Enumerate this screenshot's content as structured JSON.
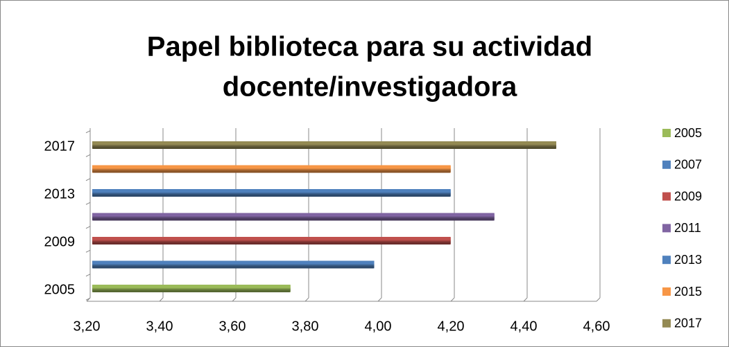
{
  "chart_data": {
    "type": "bar",
    "title": [
      "Papel biblioteca para su actividad",
      "docente/investigadora"
    ],
    "categories": [
      "2005",
      null,
      "2009",
      null,
      "2013",
      null,
      "2017"
    ],
    "values": [
      3.75,
      3.98,
      4.19,
      4.31,
      4.19,
      4.19,
      4.48
    ],
    "colors": [
      "#9bbb59",
      "#4f81bd",
      "#c0504d",
      "#8064a2",
      "#4f81bd",
      "#f79646",
      "#948a54"
    ],
    "legend": [
      "2005",
      "2007",
      "2009",
      "2011",
      "2013",
      "2015",
      "2017"
    ],
    "xlim": [
      3.2,
      4.6
    ],
    "xticks": [
      {
        "value": 3.2,
        "label": "3,20"
      },
      {
        "value": 3.4,
        "label": "3,40"
      },
      {
        "value": 3.6,
        "label": "3,60"
      },
      {
        "value": 3.8,
        "label": "3,80"
      },
      {
        "value": 4.0,
        "label": "4,00"
      },
      {
        "value": 4.2,
        "label": "4,20"
      },
      {
        "value": 4.4,
        "label": "4,40"
      },
      {
        "value": 4.6,
        "label": "4,60"
      }
    ],
    "grid": true
  }
}
